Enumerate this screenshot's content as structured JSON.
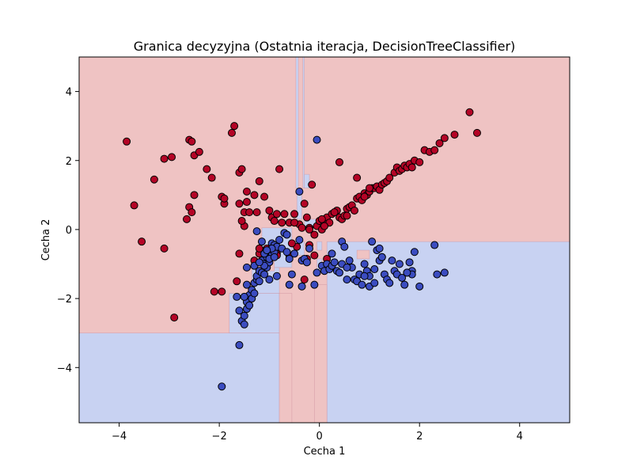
{
  "chart_data": {
    "type": "scatter",
    "title": "Granica decyzyjna (Ostatnia iteracja, DecisionTreeClassifier)",
    "xlabel": "Cecha 1",
    "ylabel": "Cecha 2",
    "xlim": [
      -4.8,
      5.0
    ],
    "ylim": [
      -5.6,
      5.0
    ],
    "xticks": [
      -4,
      -2,
      0,
      2,
      4
    ],
    "yticks": [
      -4,
      -2,
      0,
      2,
      4
    ],
    "colors": {
      "class_red_point": "#b40426",
      "class_blue_point": "#3b4cc0",
      "region_red": "#efc3c3",
      "region_blue": "#c8d2f2",
      "region_edge": "#c98a9a",
      "point_edge": "#000000"
    },
    "regions": [
      {
        "class": "blue",
        "x0": -4.8,
        "x1": -0.8,
        "y0": -5.6,
        "y1": -3.0
      },
      {
        "class": "blue",
        "x0": -1.8,
        "x1": -0.8,
        "y0": -3.0,
        "y1": -1.85
      },
      {
        "class": "blue",
        "x0": -1.35,
        "x1": -0.8,
        "y0": -1.85,
        "y1": -1.1
      },
      {
        "class": "blue",
        "x0": -1.15,
        "x1": -0.55,
        "y0": -1.1,
        "y1": 0.05
      },
      {
        "class": "blue",
        "x0": -0.55,
        "x1": -0.3,
        "y0": -0.75,
        "y1": -0.35
      },
      {
        "class": "blue",
        "x0": 0.15,
        "x1": 5.0,
        "y0": -5.6,
        "y1": -0.35
      },
      {
        "class": "blue",
        "x0": -0.05,
        "x1": 0.05,
        "y0": -1.2,
        "y1": -0.85
      },
      {
        "class": "blue",
        "x0": -0.45,
        "x1": -0.35,
        "y0": 0.3,
        "y1": 1.2
      },
      {
        "class": "blue",
        "x0": -0.47,
        "x1": -0.42,
        "y0": 1.2,
        "y1": 5.0
      },
      {
        "class": "blue",
        "x0": -0.33,
        "x1": -0.3,
        "y0": 1.2,
        "y1": 5.0
      },
      {
        "class": "blue",
        "x0": -0.3,
        "x1": -0.2,
        "y0": 1.2,
        "y1": 1.6
      },
      {
        "class": "blue",
        "x0": -0.3,
        "x1": 0.05,
        "y0": 0.1,
        "y1": 0.3
      },
      {
        "class": "blue",
        "x0": -0.05,
        "x1": 0.05,
        "y0": -0.6,
        "y1": -0.35
      },
      {
        "class": "red",
        "x0": -0.8,
        "x1": -0.55,
        "y0": -5.6,
        "y1": -1.85
      },
      {
        "class": "red",
        "x0": -0.1,
        "x1": 0.15,
        "y0": -5.6,
        "y1": -1.6
      },
      {
        "class": "red",
        "x0": 0.75,
        "x1": 1.0,
        "y0": -0.85,
        "y1": -0.6
      },
      {
        "class": "red",
        "x0": -1.05,
        "x1": -0.9,
        "y0": -1.2,
        "y1": -0.7
      }
    ],
    "series": [
      {
        "class": "red",
        "x": [
          -3.85,
          -3.7,
          -3.55,
          -3.3,
          -3.1,
          -2.95,
          -2.9,
          -2.6,
          -2.55,
          -2.5,
          -2.6,
          -2.55,
          -2.5,
          -2.65,
          -2.4,
          -2.25,
          -2.15,
          -2.1,
          -1.95,
          -1.9,
          -1.9,
          -1.75,
          -1.7,
          -1.6,
          -1.55,
          -1.5,
          -1.6,
          -1.5,
          -1.45,
          -1.45,
          -1.4,
          -1.55,
          -1.3,
          -1.25,
          -1.2,
          -1.1,
          -1.0,
          -0.95,
          -0.9,
          -0.85,
          -0.8,
          -0.75,
          -0.7,
          -0.6,
          -0.5,
          -0.4,
          -0.35,
          -0.3,
          -0.25,
          -0.2,
          -0.15,
          -0.1,
          -0.05,
          0.0,
          0.05,
          0.1,
          0.15,
          0.2,
          0.25,
          0.3,
          0.35,
          0.4,
          0.45,
          0.5,
          0.55,
          0.6,
          0.65,
          0.7,
          0.75,
          0.8,
          0.85,
          0.9,
          0.95,
          1.0,
          1.05,
          1.1,
          1.15,
          1.2,
          1.25,
          1.3,
          1.35,
          1.4,
          1.5,
          1.55,
          1.6,
          1.65,
          1.7,
          1.75,
          1.8,
          1.85,
          1.9,
          2.0,
          2.1,
          2.2,
          2.3,
          2.4,
          2.5,
          2.7,
          3.0,
          3.15,
          -0.85,
          1.0,
          -1.6,
          -1.65,
          -1.2,
          -1.05,
          -0.95,
          -1.3,
          -0.1,
          -0.2,
          -0.45,
          -0.55,
          -0.6,
          -0.3,
          0.1,
          -3.1,
          -1.95,
          -1.2,
          -0.25,
          0.15,
          0.4,
          0.75,
          -0.2,
          -1.1,
          -0.95,
          -0.85,
          0.05,
          -0.5,
          0.3,
          0.55,
          0.9
        ],
        "y": [
          2.55,
          0.7,
          -0.35,
          1.45,
          2.05,
          2.1,
          -2.55,
          2.6,
          2.55,
          1.0,
          0.65,
          0.5,
          2.15,
          0.3,
          2.25,
          1.75,
          1.5,
          -1.8,
          0.95,
          0.75,
          0.9,
          2.8,
          3.0,
          1.65,
          1.75,
          0.1,
          0.75,
          0.5,
          0.8,
          1.1,
          0.5,
          0.25,
          1.0,
          0.5,
          1.4,
          0.95,
          0.55,
          0.35,
          0.25,
          0.45,
          1.75,
          0.2,
          0.45,
          0.2,
          0.45,
          0.15,
          0.05,
          0.75,
          0.35,
          0.05,
          1.3,
          -0.15,
          0.1,
          0.25,
          0.0,
          0.2,
          0.35,
          0.2,
          0.45,
          0.5,
          0.55,
          0.35,
          0.3,
          0.4,
          0.6,
          0.65,
          0.7,
          0.55,
          0.9,
          0.95,
          0.85,
          1.05,
          1.0,
          1.1,
          1.2,
          1.2,
          1.25,
          1.15,
          1.3,
          1.35,
          1.4,
          1.5,
          1.65,
          1.8,
          1.7,
          1.75,
          1.85,
          1.8,
          1.9,
          1.8,
          2.0,
          1.95,
          2.3,
          2.25,
          2.3,
          2.5,
          2.65,
          2.75,
          3.4,
          2.8,
          -0.7,
          1.2,
          -0.7,
          -1.5,
          -0.7,
          -0.55,
          -0.7,
          -0.9,
          -0.75,
          -0.45,
          -0.5,
          -0.4,
          -0.75,
          -1.45,
          0.1,
          -0.55,
          -1.8,
          -0.55,
          -0.85,
          -0.85,
          1.95,
          1.5,
          0.0,
          -0.85,
          -0.8,
          -0.75,
          0.3,
          0.2,
          0.5,
          0.4,
          0.95
        ]
      },
      {
        "class": "blue",
        "x": [
          -1.95,
          -1.6,
          -1.55,
          -1.5,
          -1.5,
          -1.45,
          -1.45,
          -1.4,
          -1.4,
          -1.35,
          -1.35,
          -1.3,
          -1.3,
          -1.25,
          -1.25,
          -1.2,
          -1.2,
          -1.15,
          -1.15,
          -1.1,
          -1.1,
          -1.05,
          -1.05,
          -1.0,
          -1.0,
          -0.95,
          -0.95,
          -0.9,
          -0.9,
          -0.85,
          -0.85,
          -0.8,
          -0.75,
          -0.7,
          -0.65,
          -0.6,
          -0.55,
          -0.5,
          -0.4,
          -0.35,
          -0.3,
          -0.2,
          -0.1,
          -0.05,
          0.05,
          0.1,
          0.15,
          0.2,
          0.25,
          0.3,
          0.35,
          0.4,
          0.45,
          0.5,
          0.55,
          0.6,
          0.65,
          0.7,
          0.75,
          0.8,
          0.85,
          0.9,
          0.95,
          1.0,
          1.05,
          1.1,
          1.15,
          1.2,
          1.25,
          1.3,
          1.35,
          1.4,
          1.45,
          1.5,
          1.55,
          1.6,
          1.65,
          1.7,
          1.75,
          1.8,
          1.85,
          1.9,
          2.0,
          2.3,
          2.35,
          2.5,
          -0.05,
          -0.4,
          -0.6,
          -0.65,
          -0.35,
          -0.25,
          0.25,
          0.45,
          0.55,
          1.0,
          1.2,
          1.85,
          1.75,
          1.25,
          1.1,
          0.9,
          -1.0,
          -1.1,
          -1.0,
          -1.65,
          -1.6,
          -1.45,
          -1.3,
          -1.2,
          -1.1,
          -0.95,
          -0.9,
          -1.05,
          -1.15,
          -1.25,
          -1.45,
          -1.5
        ],
        "y": [
          -4.55,
          -3.35,
          -2.65,
          -2.75,
          -2.5,
          -2.3,
          -2.1,
          -2.2,
          -1.9,
          -2.0,
          -1.75,
          -1.85,
          -1.55,
          -1.45,
          -1.35,
          -1.2,
          -1.5,
          -1.25,
          -0.9,
          -1.0,
          -1.3,
          -0.8,
          -1.1,
          -0.6,
          -0.95,
          -0.4,
          -0.75,
          -0.45,
          -0.65,
          -1.35,
          -0.5,
          -0.3,
          -0.55,
          -0.1,
          -0.15,
          -1.6,
          -1.3,
          -0.7,
          -0.3,
          -0.9,
          -0.85,
          -0.55,
          -1.6,
          -1.25,
          -1.05,
          -1.2,
          -1.0,
          -1.15,
          -1.05,
          -0.95,
          -1.2,
          -1.25,
          -0.35,
          -0.5,
          -1.45,
          -0.9,
          -1.1,
          -1.45,
          -1.5,
          -1.3,
          -1.6,
          -1.0,
          -1.2,
          -1.65,
          -0.35,
          -1.55,
          -0.6,
          -0.9,
          -0.8,
          -1.3,
          -1.45,
          -1.55,
          -0.9,
          -1.2,
          -1.3,
          -1.0,
          -1.4,
          -1.6,
          -1.25,
          -0.95,
          -1.2,
          -0.65,
          -1.65,
          -0.45,
          -1.3,
          -1.25,
          2.6,
          1.1,
          -0.85,
          -0.65,
          -1.65,
          -0.95,
          -0.7,
          -1.0,
          -1.1,
          -1.35,
          -0.55,
          -1.3,
          -1.25,
          -0.8,
          -1.15,
          -1.35,
          -0.85,
          -1.05,
          -1.45,
          -1.95,
          -2.35,
          -1.6,
          -1.05,
          -0.95,
          -0.7,
          -0.55,
          -0.8,
          -0.6,
          -0.35,
          -0.05,
          -1.1,
          -1.95
        ]
      }
    ]
  }
}
